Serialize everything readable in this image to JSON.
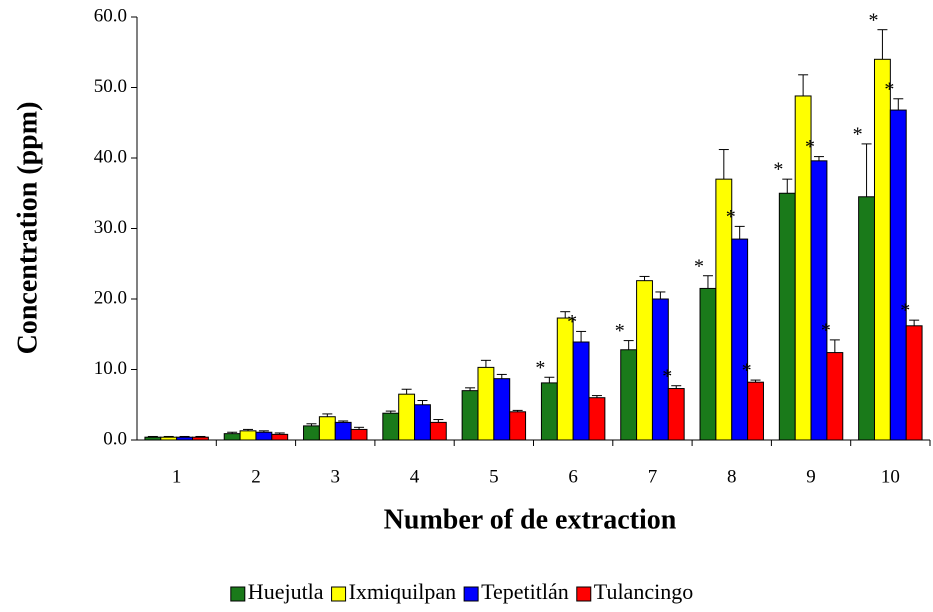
{
  "chart_data": {
    "type": "bar",
    "x_label": "Number of de extraction",
    "y_label": "Concentration (ppm)",
    "categories": [
      "1",
      "2",
      "3",
      "4",
      "5",
      "6",
      "7",
      "8",
      "9",
      "10"
    ],
    "series": [
      {
        "name": "Huejutla",
        "color": "#1a7a1a",
        "values": [
          0.4,
          0.9,
          2.0,
          3.8,
          7.0,
          8.1,
          12.8,
          21.5,
          35.0,
          34.5
        ],
        "errors": [
          0.1,
          0.2,
          0.3,
          0.3,
          0.4,
          0.8,
          1.3,
          1.8,
          2.0,
          7.5
        ]
      },
      {
        "name": "Ixmiquilpan",
        "color": "#ffff00",
        "values": [
          0.4,
          1.3,
          3.3,
          6.5,
          10.3,
          17.3,
          22.6,
          37.0,
          48.8,
          54.0
        ],
        "errors": [
          0.1,
          0.2,
          0.4,
          0.7,
          1.0,
          0.9,
          0.6,
          4.2,
          3.0,
          4.2
        ]
      },
      {
        "name": "Tepetitlán",
        "color": "#0000ff",
        "values": [
          0.4,
          1.1,
          2.5,
          5.0,
          8.7,
          13.9,
          20.0,
          28.5,
          39.6,
          46.8
        ],
        "errors": [
          0.1,
          0.2,
          0.2,
          0.6,
          0.6,
          1.5,
          1.0,
          1.8,
          0.6,
          1.6
        ]
      },
      {
        "name": "Tulancingo",
        "color": "#ff0000",
        "values": [
          0.4,
          0.8,
          1.5,
          2.5,
          4.0,
          6.0,
          7.3,
          8.2,
          12.4,
          16.2
        ],
        "errors": [
          0.1,
          0.2,
          0.3,
          0.4,
          0.2,
          0.3,
          0.4,
          0.3,
          1.8,
          0.8
        ]
      }
    ],
    "annotations": [
      {
        "text": "*",
        "series": "Huejutla",
        "category": "6"
      },
      {
        "text": "*",
        "series": "Tepetitlán",
        "category": "6"
      },
      {
        "text": "*",
        "series": "Huejutla",
        "category": "7"
      },
      {
        "text": "*",
        "series": "Tulancingo",
        "category": "7"
      },
      {
        "text": "*",
        "series": "Huejutla",
        "category": "8"
      },
      {
        "text": "*",
        "series": "Tepetitlán",
        "category": "8"
      },
      {
        "text": "*",
        "series": "Tulancingo",
        "category": "8"
      },
      {
        "text": "*",
        "series": "Huejutla",
        "category": "9"
      },
      {
        "text": "*",
        "series": "Tepetitlán",
        "category": "9"
      },
      {
        "text": "*",
        "series": "Tulancingo",
        "category": "9"
      },
      {
        "text": "*",
        "series": "Huejutla",
        "category": "10"
      },
      {
        "text": "*",
        "series": "Ixmiquilpan",
        "category": "10"
      },
      {
        "text": "*",
        "series": "Tepetitlán",
        "category": "10"
      },
      {
        "text": "*",
        "series": "Tulancingo",
        "category": "10"
      }
    ],
    "ylim": [
      0,
      60
    ],
    "yticks": [
      {
        "value": 0,
        "label": "0.0"
      },
      {
        "value": 10,
        "label": "10.0"
      },
      {
        "value": 20,
        "label": "20.0"
      },
      {
        "value": 30,
        "label": "30.0"
      },
      {
        "value": 40,
        "label": "40.0"
      },
      {
        "value": 50,
        "label": "50.0"
      },
      {
        "value": 60,
        "label": "60.0"
      }
    ],
    "grid": false,
    "legend": "bottom"
  }
}
